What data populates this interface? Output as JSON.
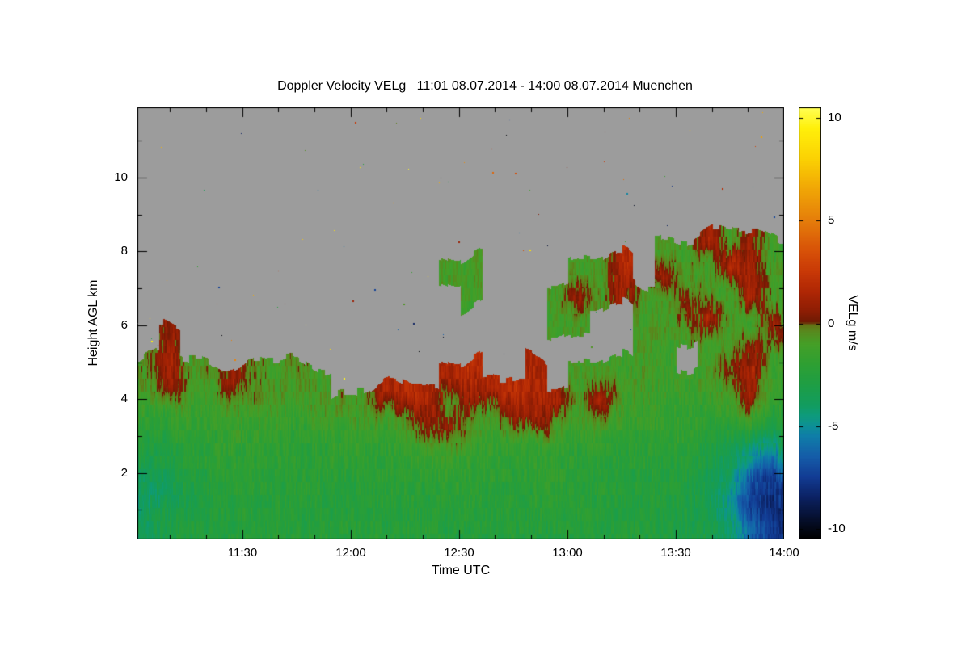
{
  "chart_data": {
    "type": "heatmap",
    "title": "Doppler Velocity VELg   11:01 08.07.2014 - 14:00 08.07.2014 Muenchen",
    "location": "Muenchen",
    "xlabel": "Time UTC",
    "ylabel": "Height AGL km",
    "colorbar_label": "VELg m/s",
    "units": "m/s",
    "x_range": [
      "11:01",
      "14:00"
    ],
    "x_ticks": [
      "11:30",
      "12:00",
      "12:30",
      "13:00",
      "13:30",
      "14:00"
    ],
    "y_ticks": [
      2,
      4,
      6,
      8,
      10
    ],
    "y_range_km": [
      0.2,
      11.9
    ],
    "colorbar_ticks": [
      10,
      5,
      0,
      -5,
      -10
    ],
    "value_range": [
      -10.5,
      10.5
    ],
    "no_data_color": "#9c9c9c",
    "legend_position": "right-colorbar",
    "grid_lines": false,
    "colormap": [
      [
        -10.5,
        "#000000"
      ],
      [
        -9.5,
        "#06102e"
      ],
      [
        -8.5,
        "#0b2161"
      ],
      [
        -7.5,
        "#123b93"
      ],
      [
        -6.5,
        "#155ca8"
      ],
      [
        -5.5,
        "#0f7da8"
      ],
      [
        -5.0,
        "#0d9097"
      ],
      [
        -4.5,
        "#0e9b7c"
      ],
      [
        -4.0,
        "#129c60"
      ],
      [
        -3.0,
        "#1e9e45"
      ],
      [
        -2.0,
        "#2e9f33"
      ],
      [
        -1.0,
        "#459f27"
      ],
      [
        -0.4,
        "#588a1e"
      ],
      [
        -0.05,
        "#637116"
      ],
      [
        0.05,
        "#6e1a04"
      ],
      [
        0.6,
        "#8d1d04"
      ],
      [
        1.5,
        "#ae2605"
      ],
      [
        2.5,
        "#c83806"
      ],
      [
        3.5,
        "#d75108"
      ],
      [
        5.0,
        "#e57d0a"
      ],
      [
        6.5,
        "#f0a506"
      ],
      [
        8.0,
        "#fbd103"
      ],
      [
        9.5,
        "#fff00a"
      ],
      [
        10.5,
        "#ffff55"
      ]
    ],
    "grid": {
      "comment": "Coarse Doppler velocity field (m/s) estimated from the plot; rows bottom-to-top at row_heights_km, 30 columns evenly spanning 11:01-14:00 UTC; null = no data (gray).",
      "row_heights_km": [
        0.5,
        1.2,
        1.9,
        2.6,
        3.3,
        4.0,
        4.7,
        5.4,
        6.1,
        6.8,
        7.5,
        8.2,
        8.9,
        9.6,
        10.3,
        11.0
      ],
      "values": [
        [
          -3.5,
          -3.0,
          -2.8,
          -2.6,
          -2.5,
          -2.5,
          -2.4,
          -2.5,
          -2.5,
          -2.4,
          -2.5,
          -2.5,
          -2.4,
          -2.5,
          -2.6,
          -2.5,
          -2.4,
          -2.5,
          -2.6,
          -2.5,
          -2.5,
          -2.6,
          -2.5,
          -2.6,
          -2.8,
          -3.0,
          -3.2,
          -4.0,
          -6.5,
          -7.5
        ],
        [
          -4.0,
          -3.6,
          -3.0,
          -2.6,
          -2.5,
          -2.4,
          -2.4,
          -2.4,
          -2.5,
          -2.4,
          -2.4,
          -2.3,
          -2.3,
          -2.4,
          -2.4,
          -2.2,
          -2.2,
          -2.3,
          -2.2,
          -2.3,
          -2.4,
          -2.4,
          -2.5,
          -2.6,
          -2.8,
          -3.0,
          -3.5,
          -5.0,
          -7.5,
          -8.0
        ],
        [
          -3.5,
          -3.0,
          -2.6,
          -2.4,
          -2.3,
          -2.2,
          -2.2,
          -2.3,
          -2.4,
          -2.4,
          -2.3,
          -2.2,
          -2.1,
          -2.0,
          -2.0,
          -2.0,
          -2.0,
          -2.1,
          -2.0,
          -2.1,
          -2.3,
          -2.4,
          -2.4,
          -2.4,
          -2.5,
          -2.8,
          -3.2,
          -4.0,
          -6.5,
          -7.5
        ],
        [
          -2.6,
          -2.4,
          -2.2,
          -2.1,
          -2.1,
          -2.0,
          -2.0,
          -2.1,
          -2.1,
          -2.0,
          -2.0,
          -1.9,
          -1.6,
          -1.2,
          -1.4,
          -1.6,
          -1.6,
          -1.6,
          -1.8,
          -1.9,
          -2.0,
          -2.0,
          -2.1,
          -2.2,
          -2.3,
          -2.5,
          -2.8,
          -3.5,
          -4.5,
          -5.5
        ],
        [
          -2.0,
          -1.6,
          -1.8,
          -1.9,
          -1.6,
          -1.5,
          -1.6,
          -1.9,
          -1.9,
          -1.6,
          -1.5,
          -1.2,
          -0.6,
          0.8,
          0.4,
          -0.6,
          -1.0,
          0.6,
          1.0,
          -1.0,
          -1.4,
          -1.0,
          -1.4,
          -1.8,
          -1.8,
          -1.9,
          -2.2,
          -2.0,
          -2.0,
          -3.0
        ],
        [
          -1.0,
          0.9,
          -1.1,
          -1.4,
          -1.0,
          -0.6,
          -1.0,
          -1.0,
          -1.1,
          -0.6,
          -1.0,
          1.4,
          1.8,
          1.4,
          -0.5,
          1.0,
          1.5,
          1.8,
          1.4,
          1.0,
          -1.0,
          1.4,
          -1.0,
          -1.4,
          -1.5,
          -1.8,
          -1.4,
          -1.0,
          1.0,
          -2.0
        ],
        [
          -0.6,
          1.4,
          -1.0,
          -0.6,
          0.9,
          -0.6,
          -1.0,
          -0.6,
          -1.0,
          null,
          null,
          null,
          null,
          null,
          1.4,
          1.8,
          null,
          null,
          1.4,
          null,
          -1.0,
          -1.0,
          -1.4,
          -1.0,
          -1.4,
          -1.4,
          -1.0,
          0.5,
          1.4,
          -1.5
        ],
        [
          null,
          0.5,
          null,
          null,
          null,
          null,
          null,
          null,
          null,
          null,
          null,
          null,
          null,
          null,
          null,
          null,
          null,
          null,
          null,
          null,
          null,
          null,
          null,
          -1.0,
          -1.4,
          null,
          -1.0,
          -1.0,
          0.9,
          -1.0
        ],
        [
          null,
          null,
          null,
          null,
          null,
          null,
          null,
          null,
          null,
          null,
          null,
          null,
          null,
          null,
          null,
          null,
          null,
          null,
          null,
          -1.0,
          -1.0,
          null,
          null,
          -1.0,
          -1.0,
          -1.0,
          1.4,
          -1.0,
          -1.4,
          0.9
        ],
        [
          null,
          null,
          null,
          null,
          null,
          null,
          null,
          null,
          null,
          null,
          null,
          null,
          null,
          null,
          null,
          -1.0,
          null,
          null,
          null,
          -1.0,
          0.9,
          -1.0,
          1.4,
          -1.0,
          -1.4,
          0.9,
          -1.0,
          -1.4,
          1.4,
          -1.0
        ],
        [
          null,
          null,
          null,
          null,
          null,
          null,
          null,
          null,
          null,
          null,
          null,
          null,
          null,
          null,
          -1.0,
          -1.0,
          null,
          null,
          null,
          null,
          -1.0,
          -1.0,
          1.8,
          null,
          0.9,
          -1.0,
          -1.4,
          1.8,
          0.9,
          -1.0
        ],
        [
          null,
          null,
          null,
          null,
          null,
          null,
          null,
          null,
          null,
          null,
          null,
          null,
          null,
          null,
          null,
          null,
          null,
          null,
          null,
          null,
          null,
          null,
          null,
          null,
          -1.0,
          -1.0,
          1.4,
          -1.0,
          0.9,
          -1.4
        ],
        [
          null,
          null,
          null,
          null,
          null,
          null,
          null,
          null,
          null,
          null,
          null,
          null,
          null,
          null,
          null,
          null,
          null,
          null,
          null,
          null,
          null,
          null,
          null,
          null,
          null,
          null,
          null,
          null,
          null,
          null
        ],
        [
          null,
          null,
          null,
          null,
          null,
          null,
          null,
          null,
          null,
          null,
          null,
          null,
          null,
          null,
          null,
          null,
          null,
          null,
          null,
          null,
          null,
          null,
          null,
          null,
          null,
          null,
          null,
          null,
          null,
          null
        ],
        [
          null,
          null,
          null,
          null,
          null,
          null,
          null,
          null,
          null,
          null,
          null,
          null,
          null,
          null,
          null,
          null,
          null,
          null,
          null,
          null,
          null,
          null,
          null,
          null,
          null,
          null,
          null,
          null,
          null,
          null
        ],
        [
          null,
          null,
          null,
          null,
          null,
          null,
          null,
          null,
          null,
          null,
          null,
          null,
          null,
          null,
          null,
          null,
          null,
          null,
          null,
          null,
          null,
          null,
          null,
          null,
          null,
          null,
          null,
          null,
          null,
          null
        ]
      ]
    },
    "noise_specks": 85
  }
}
